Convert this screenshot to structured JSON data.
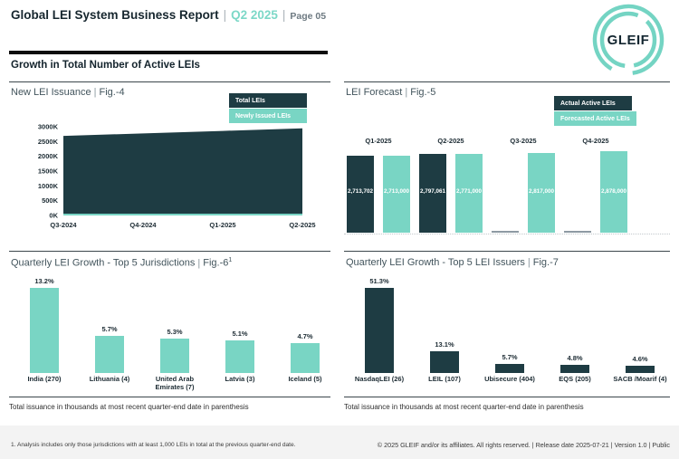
{
  "header": {
    "title": "Global LEI System Business Report",
    "divider": "|",
    "period": "Q2 2025",
    "page_label": "Page 05",
    "section_title": "Growth in Total Number of Active LEIs"
  },
  "logo": {
    "text": "GLEIF"
  },
  "colors": {
    "dark_teal": "#1E3C43",
    "teal": "#79D5C4",
    "header_teal": "#7CD8C7",
    "missing_gray": "#8E9AA3"
  },
  "chart_data": [
    {
      "id": "fig4",
      "type": "area",
      "title": "New LEI Issuance",
      "fig": "Fig.-4",
      "categories": [
        "Q3-2024",
        "Q4-2024",
        "Q1-2025",
        "Q2-2025"
      ],
      "series": [
        {
          "name": "Total LEIs",
          "color_key": "dark_teal",
          "values": [
            2690,
            2775,
            2860,
            2945
          ]
        },
        {
          "name": "Newly Issued LEIs",
          "color_key": "teal",
          "values": [
            60,
            60,
            60,
            60
          ]
        }
      ],
      "unit": "K",
      "ylim": [
        0,
        3000
      ],
      "ytick_step": 500,
      "legend_position": "top-right",
      "grid": false
    },
    {
      "id": "fig5",
      "type": "bar",
      "title": "LEI Forecast",
      "fig": "Fig.-5",
      "categories": [
        "Q1-2025",
        "Q2-2025",
        "Q3-2025",
        "Q4-2025"
      ],
      "series": [
        {
          "name": "Actual Active LEIs",
          "color_key": "dark_teal",
          "values": [
            2713702,
            2797061,
            null,
            null
          ],
          "labels": [
            "2,713,702",
            "2,797,061",
            null,
            null
          ]
        },
        {
          "name": "Forecasted Active LEIs",
          "color_key": "teal",
          "values": [
            2713000,
            2771000,
            2817000,
            2878000
          ],
          "labels": [
            "2,713,000",
            "2,771,000",
            "2,817,000",
            "2,878,000"
          ]
        }
      ],
      "ymax": 2878000,
      "legend_position": "top-right"
    },
    {
      "id": "fig6",
      "type": "bar",
      "title": "Quarterly LEI Growth - Top 5 Jurisdictions",
      "fig": "Fig.-6",
      "fig_superscript": "1",
      "categories": [
        "India (270)",
        "Lithuania (4)",
        "United Arab Emirates (7)",
        "Latvia (3)",
        "Iceland (5)"
      ],
      "values": [
        13.2,
        5.7,
        5.3,
        5.1,
        4.7
      ],
      "labels": [
        "13.2%",
        "5.7%",
        "5.3%",
        "5.1%",
        "4.7%"
      ],
      "bar_color_key": "teal",
      "ymax": 13.2
    },
    {
      "id": "fig7",
      "type": "bar",
      "title": "Quarterly LEI Growth - Top 5 LEI Issuers",
      "fig": "Fig.-7",
      "categories": [
        "NasdaqLEI (26)",
        "LEIL (107)",
        "Ubisecure (404)",
        "EQS (205)",
        "SACB /Moarif (4)"
      ],
      "values": [
        51.3,
        13.1,
        5.7,
        4.8,
        4.6
      ],
      "labels": [
        "51.3%",
        "13.1%",
        "5.7%",
        "4.8%",
        "4.6%"
      ],
      "bar_color_key": "dark_teal",
      "ymax": 51.3
    }
  ],
  "captions": {
    "jurisdictions": "Total issuance in thousands at most recent quarter-end date in parenthesis",
    "issuers": "Total issuance in thousands at most recent quarter-end date in parenthesis"
  },
  "footnote": "1. Analysis includes only those jurisdictions with at least 1,000 LEIs in total at the previous quarter-end date.",
  "footer": "© 2025 GLEIF and/or its affiliates. All rights reserved. | Release date 2025-07-21 | Version 1.0 | Public"
}
